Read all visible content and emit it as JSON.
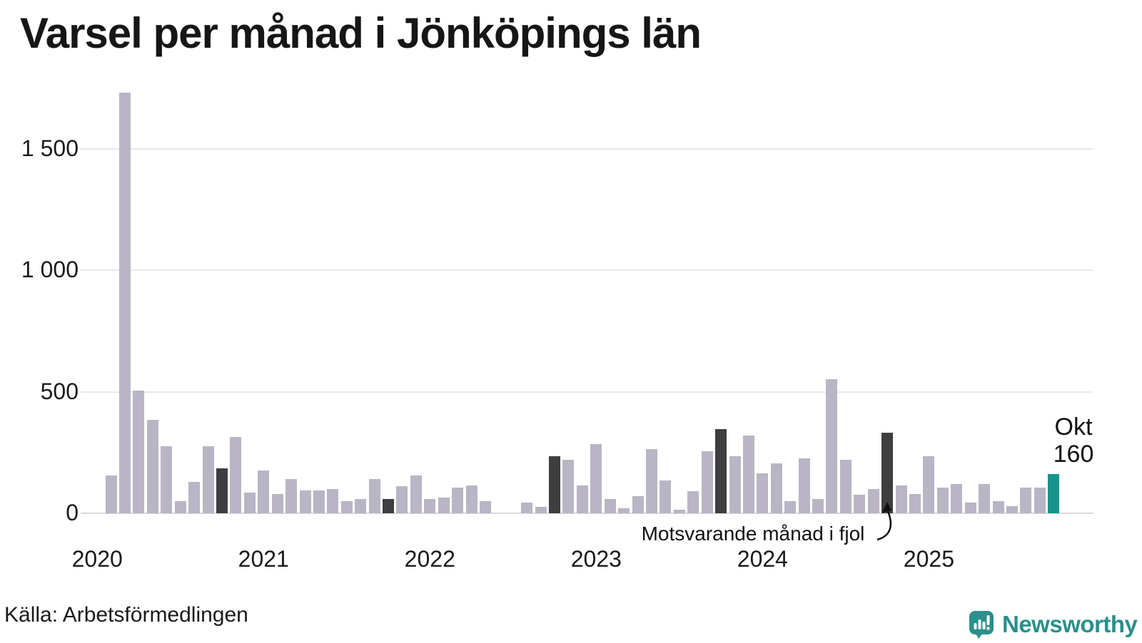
{
  "title": "Varsel per månad i Jönköpings län",
  "source_note": "Källa: Arbetsförmedlingen",
  "branding": {
    "name": "Newsworthy"
  },
  "annotation": {
    "text": "Motsvarande månad i fjol",
    "points_to_month": "2024-10"
  },
  "current_label": {
    "month": "Okt",
    "value": "160"
  },
  "colors": {
    "bar_default": "#b9b5c4",
    "bar_dark": "#3e3e40",
    "bar_accent": "#16948a",
    "gridline": "#e9e8ee",
    "axis_line": "#d9d8de",
    "text": "#1a1a1a",
    "brand_teal": "#2b8f8b"
  },
  "chart_data": {
    "type": "bar",
    "title": "Varsel per månad i Jönköpings län",
    "xlabel": "",
    "ylabel": "",
    "ylim": [
      0,
      1750
    ],
    "grid": true,
    "legend": "none",
    "y_ticks": [
      {
        "value": 0,
        "label": "0"
      },
      {
        "value": 500,
        "label": "500"
      },
      {
        "value": 1000,
        "label": "1 000"
      },
      {
        "value": 1500,
        "label": "1 500"
      }
    ],
    "x_tick_labels": [
      "2020",
      "2021",
      "2022",
      "2023",
      "2024",
      "2025"
    ],
    "dark_months": [
      "2020-10",
      "2021-10",
      "2022-10",
      "2023-10",
      "2024-10"
    ],
    "accent_months": [
      "2025-10"
    ],
    "points": [
      {
        "m": "2020-02",
        "v": 155
      },
      {
        "m": "2020-03",
        "v": 1730
      },
      {
        "m": "2020-04",
        "v": 505
      },
      {
        "m": "2020-05",
        "v": 385
      },
      {
        "m": "2020-06",
        "v": 275
      },
      {
        "m": "2020-07",
        "v": 50
      },
      {
        "m": "2020-08",
        "v": 130
      },
      {
        "m": "2020-09",
        "v": 275
      },
      {
        "m": "2020-10",
        "v": 185
      },
      {
        "m": "2020-11",
        "v": 315
      },
      {
        "m": "2020-12",
        "v": 85
      },
      {
        "m": "2021-01",
        "v": 175
      },
      {
        "m": "2021-02",
        "v": 80
      },
      {
        "m": "2021-03",
        "v": 140
      },
      {
        "m": "2021-04",
        "v": 95
      },
      {
        "m": "2021-05",
        "v": 95
      },
      {
        "m": "2021-06",
        "v": 100
      },
      {
        "m": "2021-07",
        "v": 50
      },
      {
        "m": "2021-08",
        "v": 60
      },
      {
        "m": "2021-09",
        "v": 140
      },
      {
        "m": "2021-10",
        "v": 60
      },
      {
        "m": "2021-11",
        "v": 110
      },
      {
        "m": "2021-12",
        "v": 155
      },
      {
        "m": "2022-01",
        "v": 60
      },
      {
        "m": "2022-02",
        "v": 65
      },
      {
        "m": "2022-03",
        "v": 105
      },
      {
        "m": "2022-04",
        "v": 115
      },
      {
        "m": "2022-05",
        "v": 50
      },
      {
        "m": "2022-06",
        "v": 0
      },
      {
        "m": "2022-07",
        "v": 0
      },
      {
        "m": "2022-08",
        "v": 45
      },
      {
        "m": "2022-09",
        "v": 25
      },
      {
        "m": "2022-10",
        "v": 235
      },
      {
        "m": "2022-11",
        "v": 220
      },
      {
        "m": "2022-12",
        "v": 115
      },
      {
        "m": "2023-01",
        "v": 285
      },
      {
        "m": "2023-02",
        "v": 60
      },
      {
        "m": "2023-03",
        "v": 20
      },
      {
        "m": "2023-04",
        "v": 70
      },
      {
        "m": "2023-05",
        "v": 265
      },
      {
        "m": "2023-06",
        "v": 135
      },
      {
        "m": "2023-07",
        "v": 15
      },
      {
        "m": "2023-08",
        "v": 90
      },
      {
        "m": "2023-09",
        "v": 255
      },
      {
        "m": "2023-10",
        "v": 345
      },
      {
        "m": "2023-11",
        "v": 235
      },
      {
        "m": "2023-12",
        "v": 320
      },
      {
        "m": "2024-01",
        "v": 165
      },
      {
        "m": "2024-02",
        "v": 205
      },
      {
        "m": "2024-03",
        "v": 50
      },
      {
        "m": "2024-04",
        "v": 225
      },
      {
        "m": "2024-05",
        "v": 60
      },
      {
        "m": "2024-06",
        "v": 550
      },
      {
        "m": "2024-07",
        "v": 220
      },
      {
        "m": "2024-08",
        "v": 75
      },
      {
        "m": "2024-09",
        "v": 100
      },
      {
        "m": "2024-10",
        "v": 330
      },
      {
        "m": "2024-11",
        "v": 115
      },
      {
        "m": "2024-12",
        "v": 80
      },
      {
        "m": "2025-01",
        "v": 235
      },
      {
        "m": "2025-02",
        "v": 105
      },
      {
        "m": "2025-03",
        "v": 120
      },
      {
        "m": "2025-04",
        "v": 45
      },
      {
        "m": "2025-05",
        "v": 120
      },
      {
        "m": "2025-06",
        "v": 50
      },
      {
        "m": "2025-07",
        "v": 30
      },
      {
        "m": "2025-08",
        "v": 105
      },
      {
        "m": "2025-09",
        "v": 105
      },
      {
        "m": "2025-10",
        "v": 160
      }
    ]
  }
}
